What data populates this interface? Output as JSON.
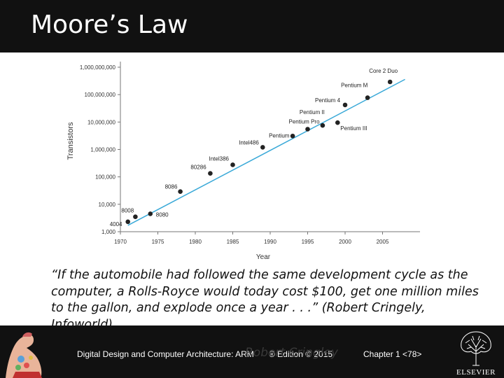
{
  "slide": {
    "title": "Moore’s Law",
    "quote": "“If the automobile had followed the same development cycle as the computer, a Rolls-Royce would today cost $100, get one million miles to the gallon, and explode once a year . . .” (Robert Cringely, Infoworld)",
    "attribution_ghost": "Robert Cringley"
  },
  "footer": {
    "book": "Digital Design and Computer Architecture: ARM",
    "edition": "® Edition © 2015",
    "chapter": "Chapter 1 <78>",
    "publisher": "ELSEVIER"
  },
  "colors": {
    "title_bar": "#111111",
    "trend_line": "#3aa9d8",
    "point": "#222222"
  },
  "chart_data": {
    "type": "scatter",
    "title": "",
    "xlabel": "Year",
    "ylabel": "Transistors",
    "y_scale": "log",
    "xlim": [
      1970,
      2010
    ],
    "ylim": [
      1000,
      1000000000
    ],
    "x_ticks": [
      1970,
      1975,
      1980,
      1985,
      1990,
      1995,
      2000,
      2005
    ],
    "y_ticks": [
      1000,
      10000,
      100000,
      1000000,
      10000000,
      100000000,
      1000000000
    ],
    "y_tick_labels": [
      "1,000",
      "10,000",
      "100,000",
      "1,000,000",
      "10,000,000",
      "100,000,000",
      "1,000,000,000"
    ],
    "points": [
      {
        "name": "4004",
        "x": 1971,
        "y": 2300
      },
      {
        "name": "8008",
        "x": 1972,
        "y": 3500
      },
      {
        "name": "8080",
        "x": 1974,
        "y": 4500
      },
      {
        "name": "8086",
        "x": 1978,
        "y": 29000
      },
      {
        "name": "80286",
        "x": 1982,
        "y": 134000
      },
      {
        "name": "Intel386",
        "x": 1985,
        "y": 275000
      },
      {
        "name": "Intel486",
        "x": 1989,
        "y": 1200000
      },
      {
        "name": "Pentium",
        "x": 1993,
        "y": 3100000
      },
      {
        "name": "Pentium Pro",
        "x": 1995,
        "y": 5500000
      },
      {
        "name": "Pentium II",
        "x": 1997,
        "y": 7500000
      },
      {
        "name": "Pentium III",
        "x": 1999,
        "y": 9500000
      },
      {
        "name": "Pentium 4",
        "x": 2000,
        "y": 42000000
      },
      {
        "name": "Pentium M",
        "x": 2003,
        "y": 77000000
      },
      {
        "name": "Core 2 Duo",
        "x": 2006,
        "y": 291000000
      }
    ],
    "trend_line": {
      "x": [
        1971,
        2008
      ],
      "y": [
        1700,
        360000000
      ]
    }
  }
}
